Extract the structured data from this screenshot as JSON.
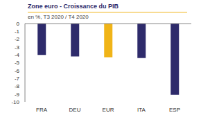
{
  "chart_data": {
    "type": "bar",
    "title": "Zone euro - Croissance du PIB",
    "subtitle": "en %, T3 2020 / T4 2020",
    "categories": [
      "FRA",
      "DEU",
      "EUR",
      "ITA",
      "ESP"
    ],
    "values": [
      -4.0,
      -4.2,
      -4.3,
      -4.4,
      -9.1
    ],
    "colors": [
      "#2e2b6b",
      "#2e2b6b",
      "#f0b418",
      "#2e2b6b",
      "#2e2b6b"
    ],
    "ylim": [
      -10,
      0
    ],
    "yticks": [
      0,
      -1,
      -2,
      -3,
      -4,
      -5,
      -6,
      -7,
      -8,
      -9,
      -10
    ],
    "grid": false
  }
}
